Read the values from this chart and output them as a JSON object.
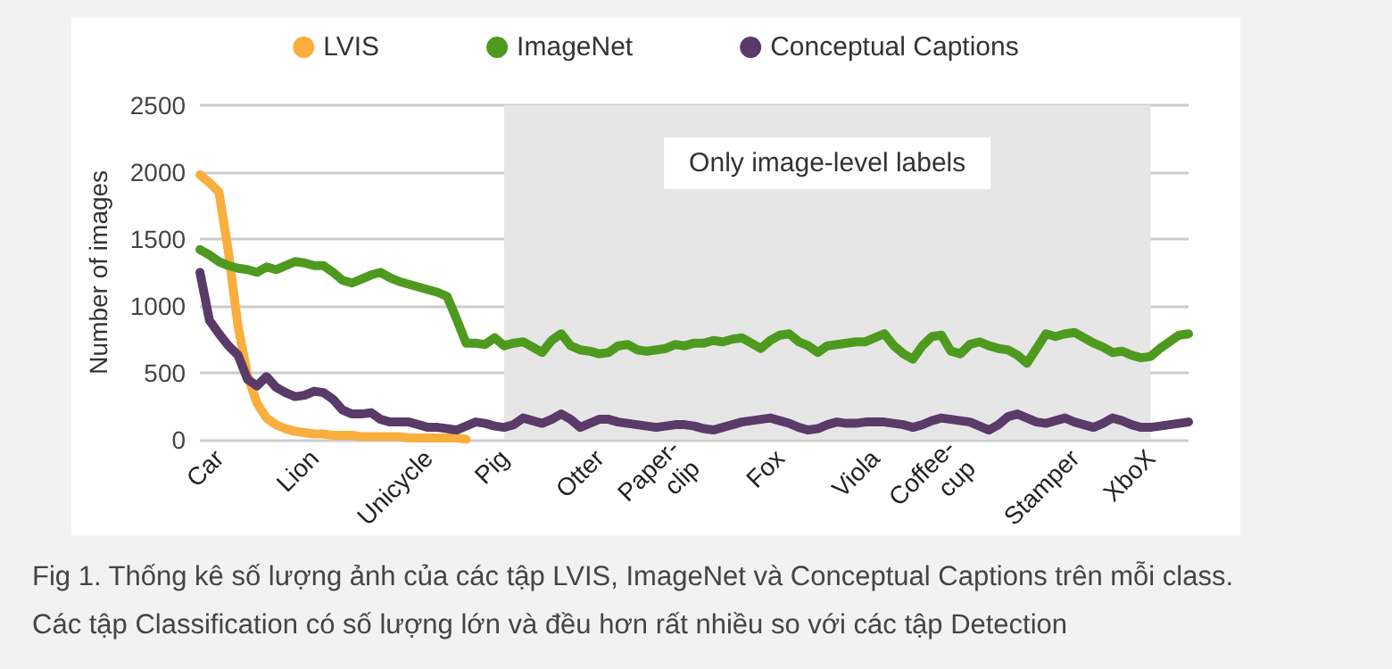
{
  "chart_data": {
    "type": "line",
    "ylabel": "Number of images",
    "ylim": [
      0,
      2500
    ],
    "yticks": [
      0,
      500,
      1000,
      1500,
      2000,
      2500
    ],
    "grid": "y",
    "legend": "top",
    "marker": "none",
    "line_style": "solid",
    "categories": [
      null,
      null,
      "Car",
      null,
      null,
      null,
      null,
      null,
      null,
      null,
      null,
      null,
      "Lion",
      null,
      null,
      null,
      null,
      null,
      null,
      null,
      null,
      null,
      null,
      null,
      "Unicycle",
      null,
      null,
      null,
      null,
      null,
      null,
      null,
      "Pig",
      null,
      null,
      null,
      null,
      null,
      null,
      null,
      null,
      null,
      "Otter",
      null,
      null,
      null,
      null,
      null,
      null,
      null,
      null,
      "Paper-\nclip",
      null,
      null,
      null,
      null,
      null,
      null,
      null,
      null,
      null,
      "Fox",
      null,
      null,
      null,
      null,
      null,
      null,
      null,
      null,
      null,
      "Viola",
      null,
      null,
      null,
      null,
      null,
      null,
      null,
      null,
      "Coffee-\ncup",
      null,
      null,
      null,
      null,
      null,
      null,
      null,
      null,
      null,
      null,
      null,
      "Stamper",
      null,
      null,
      null,
      null,
      null,
      null,
      null,
      "XboX",
      null,
      null,
      null,
      null
    ],
    "series": [
      {
        "name": "LVIS",
        "color": "#f9ae3d",
        "values": [
          1980,
          1920,
          1850,
          1400,
          850,
          480,
          270,
          160,
          110,
          80,
          60,
          50,
          40,
          40,
          30,
          30,
          30,
          20,
          20,
          20,
          20,
          20,
          10,
          10,
          10,
          10,
          10,
          10,
          0,
          null,
          null,
          null,
          null,
          null,
          null,
          null,
          null,
          null,
          null,
          null,
          null,
          null,
          null,
          null,
          null,
          null,
          null,
          null,
          null,
          null,
          null,
          null,
          null,
          null,
          null,
          null,
          null,
          null,
          null,
          null,
          null,
          null,
          null,
          null,
          null,
          null,
          null,
          null,
          null,
          null,
          null,
          null,
          null,
          null,
          null,
          null,
          null,
          null,
          null,
          null,
          null,
          null,
          null,
          null,
          null,
          null,
          null,
          null,
          null,
          null,
          null,
          null,
          null,
          null,
          null,
          null,
          null,
          null,
          null,
          null,
          null,
          null,
          null,
          null,
          null
        ]
      },
      {
        "name": "ImageNet",
        "color": "#4e9a1f",
        "values": [
          1420,
          1380,
          1330,
          1300,
          1280,
          1270,
          1250,
          1290,
          1270,
          1300,
          1330,
          1320,
          1300,
          1300,
          1250,
          1190,
          1170,
          1200,
          1230,
          1250,
          1210,
          1180,
          1160,
          1140,
          1120,
          1100,
          1070,
          900,
          720,
          720,
          710,
          760,
          700,
          720,
          730,
          690,
          650,
          740,
          790,
          700,
          670,
          660,
          640,
          650,
          700,
          710,
          670,
          660,
          670,
          680,
          710,
          700,
          720,
          720,
          740,
          730,
          750,
          760,
          720,
          680,
          740,
          780,
          790,
          730,
          700,
          650,
          700,
          710,
          720,
          730,
          730,
          760,
          790,
          700,
          640,
          600,
          700,
          770,
          780,
          660,
          640,
          710,
          730,
          700,
          680,
          670,
          630,
          570,
          680,
          790,
          770,
          790,
          800,
          760,
          720,
          690,
          650,
          660,
          630,
          610,
          620,
          680,
          730,
          780,
          790
        ]
      },
      {
        "name": "Conceptual Captions",
        "color": "#5a3a68",
        "values": [
          1250,
          890,
          790,
          700,
          630,
          450,
          400,
          470,
          390,
          350,
          320,
          330,
          360,
          350,
          300,
          220,
          190,
          190,
          200,
          150,
          130,
          130,
          130,
          110,
          90,
          90,
          80,
          70,
          100,
          130,
          120,
          100,
          90,
          110,
          160,
          140,
          120,
          150,
          190,
          150,
          90,
          120,
          150,
          150,
          130,
          120,
          110,
          100,
          90,
          100,
          110,
          110,
          100,
          80,
          70,
          90,
          110,
          130,
          140,
          150,
          160,
          140,
          120,
          90,
          70,
          80,
          110,
          130,
          120,
          120,
          130,
          130,
          130,
          120,
          110,
          90,
          110,
          140,
          160,
          150,
          140,
          130,
          100,
          70,
          110,
          170,
          190,
          160,
          130,
          120,
          140,
          160,
          130,
          110,
          90,
          120,
          160,
          140,
          110,
          90,
          90,
          100,
          110,
          120,
          130
        ]
      }
    ],
    "bands": [
      {
        "axis": "x",
        "from": "Pig",
        "to": "XboX",
        "label": "Only image-level labels",
        "color": "#e6e6e6"
      }
    ],
    "annotations": [
      "Fig 1. Thống kê số lượng ảnh của các tập LVIS, ImageNet và Conceptual Captions trên mỗi class.",
      "Các tập Classification có số lượng lớn và đều hơn rất nhiều so với các tập Detection"
    ]
  }
}
